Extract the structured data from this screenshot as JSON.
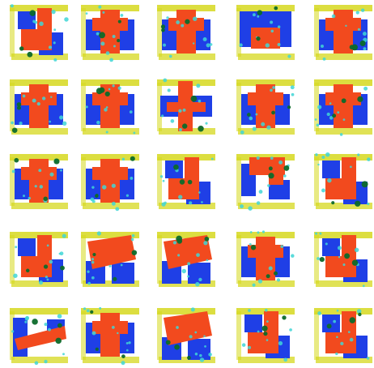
{
  "colors": {
    "background": "#ffffff",
    "red": "#f24a1e",
    "blue": "#1f3fe6",
    "yellow": "#d6d81e",
    "cyan": "#3fd6d6",
    "green": "#0c6a2a"
  },
  "grid": {
    "rows": 5,
    "cols": 5
  },
  "tiles": [
    {
      "id": "r0c0",
      "kind": "L"
    },
    {
      "id": "r0c1",
      "kind": "T"
    },
    {
      "id": "r0c2",
      "kind": "T"
    },
    {
      "id": "r0c3",
      "kind": "U"
    },
    {
      "id": "r0c4",
      "kind": "T"
    },
    {
      "id": "r1c0",
      "kind": "T"
    },
    {
      "id": "r1c1",
      "kind": "T"
    },
    {
      "id": "r1c2",
      "kind": "Cross"
    },
    {
      "id": "r1c3",
      "kind": "T"
    },
    {
      "id": "r1c4",
      "kind": "T"
    },
    {
      "id": "r2c0",
      "kind": "T"
    },
    {
      "id": "r2c1",
      "kind": "T"
    },
    {
      "id": "r2c2",
      "kind": "L"
    },
    {
      "id": "r2c3",
      "kind": "Block"
    },
    {
      "id": "r2c4",
      "kind": "L"
    },
    {
      "id": "r3c0",
      "kind": "L"
    },
    {
      "id": "r3c1",
      "kind": "Z"
    },
    {
      "id": "r3c2",
      "kind": "Z"
    },
    {
      "id": "r3c3",
      "kind": "T"
    },
    {
      "id": "r3c4",
      "kind": "L"
    },
    {
      "id": "r4c0",
      "kind": "Slant"
    },
    {
      "id": "r4c1",
      "kind": "T"
    },
    {
      "id": "r4c2",
      "kind": "Z"
    },
    {
      "id": "r4c3",
      "kind": "L"
    },
    {
      "id": "r4c4",
      "kind": "L"
    }
  ]
}
